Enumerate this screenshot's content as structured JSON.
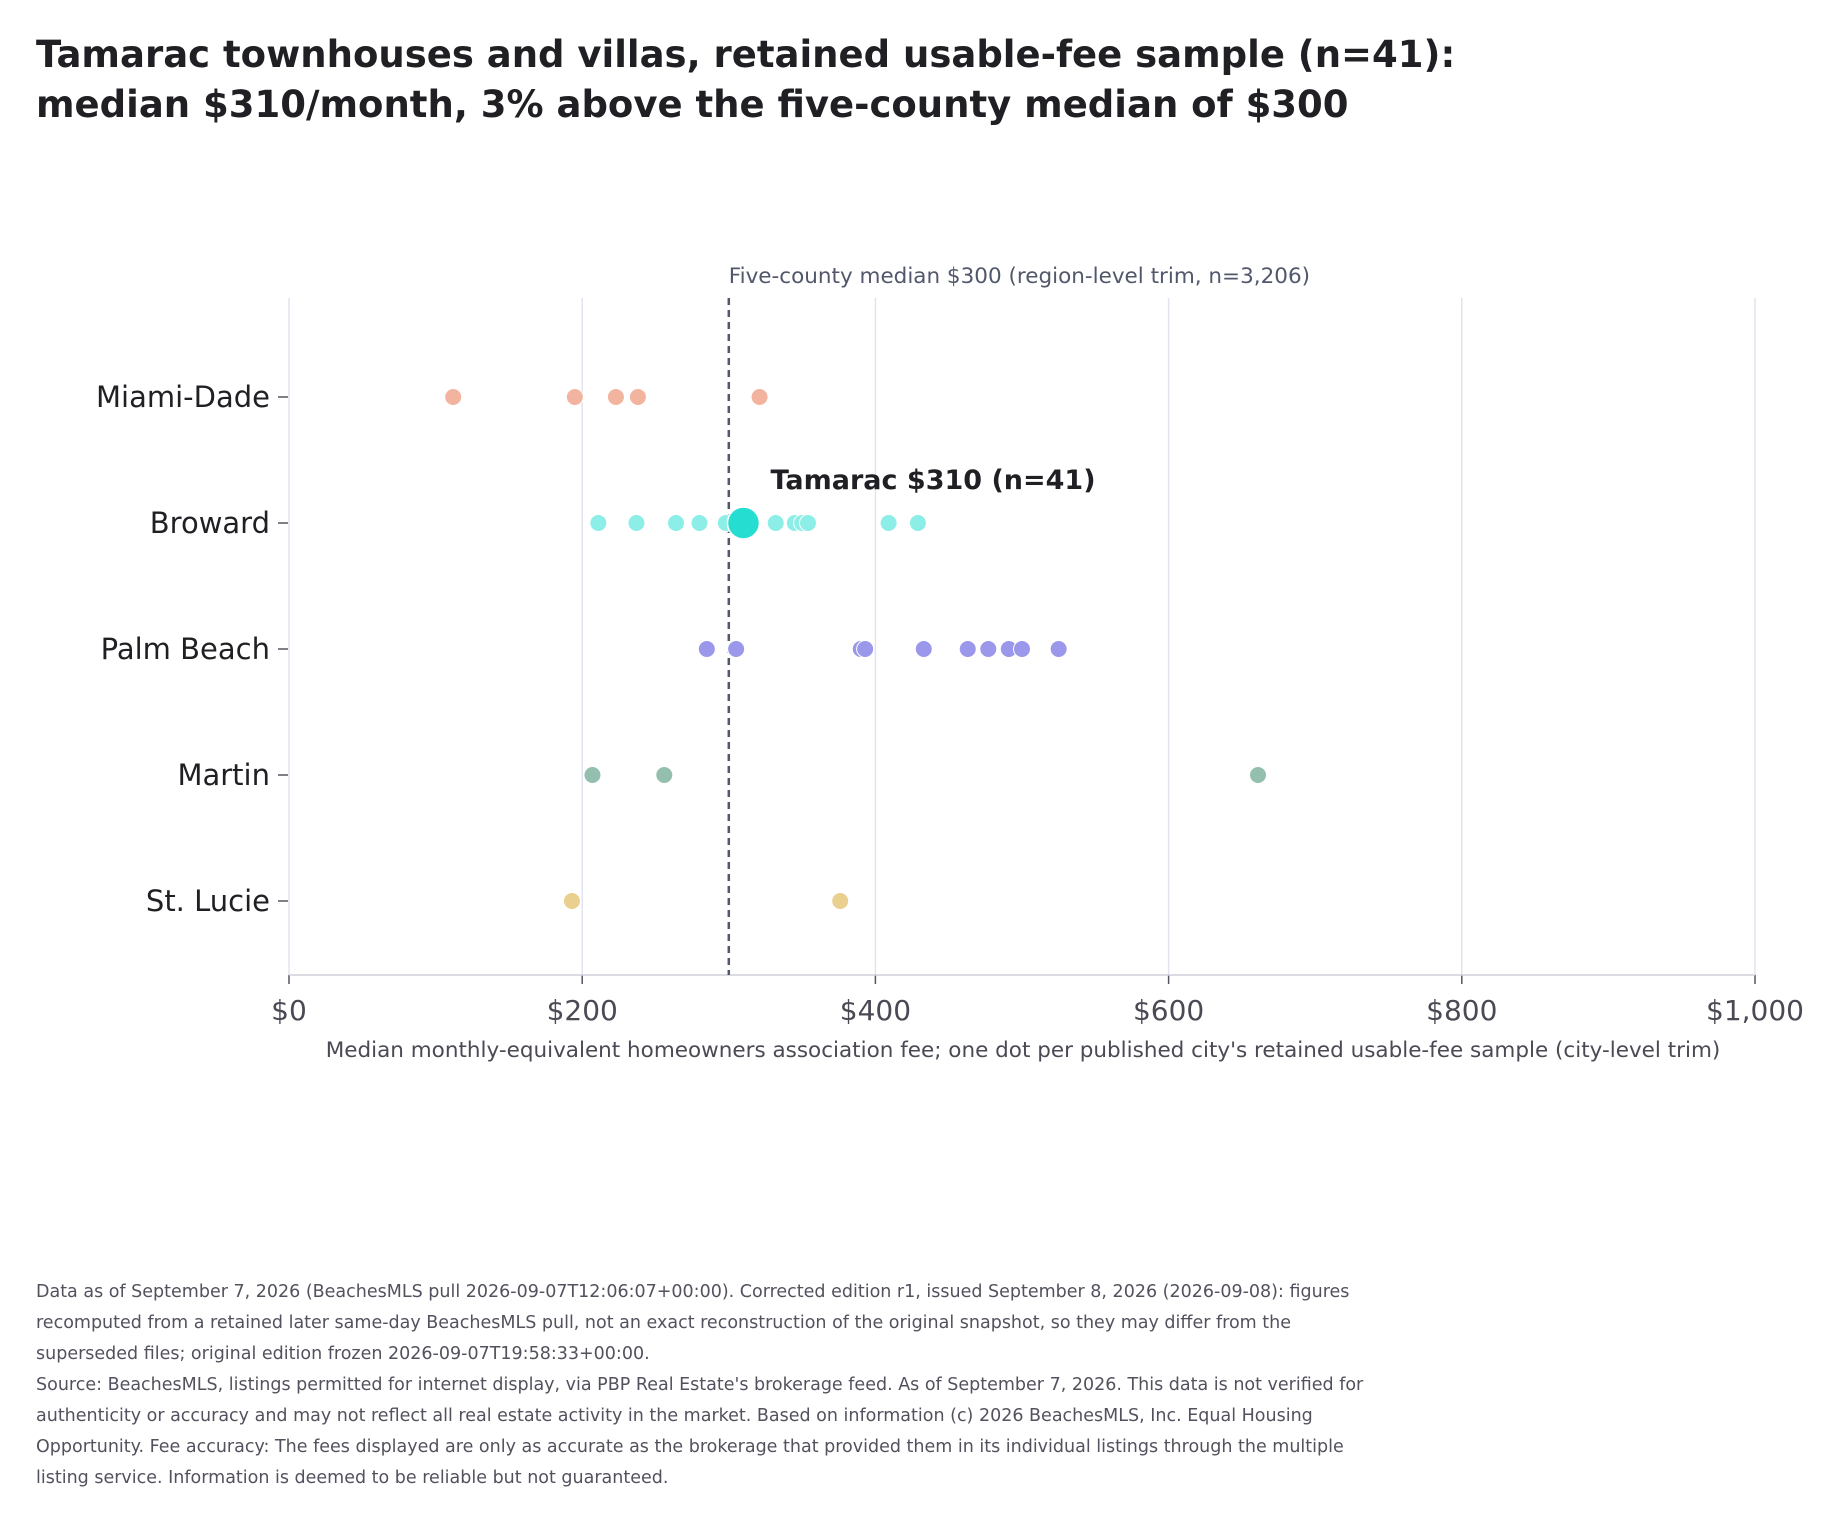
{
  "title": {
    "line1": "Tamarac townhouses and villas, retained usable-fee sample (n=41):",
    "line2": "median $310/month, 3% above the five-county median of $300"
  },
  "chart_data": {
    "type": "scatter",
    "categories": [
      "Miami-Dade",
      "Broward",
      "Palm Beach",
      "Martin",
      "St. Lucie"
    ],
    "xlim": [
      0,
      1000
    ],
    "xticks": [
      0,
      200,
      400,
      600,
      800,
      1000
    ],
    "xtick_labels": [
      "$0",
      "$200",
      "$400",
      "$600",
      "$800",
      "$1,000"
    ],
    "xlabel": "Median monthly-equivalent homeowners association fee; one dot per published city's retained usable-fee sample (city-level trim)",
    "grid": "vertical",
    "series": [
      {
        "category": "Miami-Dade",
        "color": "#f2b49e",
        "values": [
          112,
          195,
          223,
          238,
          321
        ]
      },
      {
        "category": "Broward",
        "color": "#8ceee6",
        "values": [
          211,
          237,
          264,
          280,
          298,
          332,
          345,
          350,
          354,
          409,
          429
        ]
      },
      {
        "category": "Palm Beach",
        "color": "#9b97ea",
        "values": [
          285,
          305,
          390,
          393,
          433,
          463,
          477,
          491,
          500,
          525
        ]
      },
      {
        "category": "Martin",
        "color": "#94bfaf",
        "values": [
          207,
          256,
          661
        ]
      },
      {
        "category": "St. Lucie",
        "color": "#ead08e",
        "values": [
          193,
          376
        ]
      }
    ],
    "highlight": {
      "category": "Broward",
      "value": 310,
      "color": "#25ddd0",
      "label": "Tamarac $310 (n=41)"
    },
    "reference_line": {
      "value": 300,
      "label": "Five-county median $300 (region-level trim, n=3,206)",
      "color": "#52586b"
    }
  },
  "footer": {
    "note": "Data as of September 7, 2026 (BeachesMLS pull 2026-09-07T12:06:07+00:00). Corrected edition r1, issued September 8, 2026 (2026-09-08): figures recomputed from a retained later same-day BeachesMLS pull, not an exact reconstruction of the original snapshot, so they may differ from the superseded files; original edition frozen 2026-09-07T19:58:33+00:00.",
    "source": "Source: BeachesMLS, listings permitted for internet display, via PBP Real Estate's brokerage feed. As of September 7, 2026. This data is not verified for authenticity or accuracy and may not reflect all real estate activity in the market. Based on information (c) 2026 BeachesMLS, Inc. Equal Housing Opportunity. Fee accuracy: The fees displayed are only as accurate as the brokerage that provided them in its individual listings through the multiple listing service. Information is deemed to be reliable but not guaranteed."
  }
}
